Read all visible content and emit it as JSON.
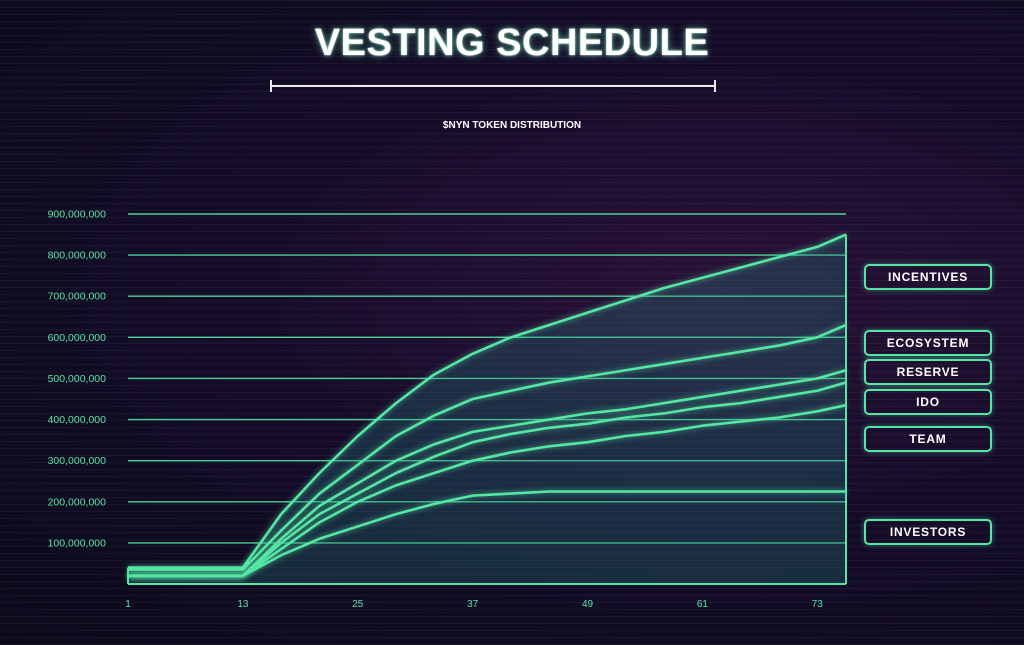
{
  "title": "VESTING SCHEDULE",
  "subtitle": "$NYN TOKEN DISTRIBUTION",
  "colors": {
    "line": "#55e6a5",
    "grid": "#55e6a5",
    "text": "#ffffff"
  },
  "chart_data": {
    "type": "area",
    "title": "VESTING SCHEDULE",
    "subtitle": "$NYN TOKEN DISTRIBUTION",
    "xlabel": "",
    "ylabel": "",
    "xlim": [
      1,
      76
    ],
    "ylim": [
      0,
      900000000
    ],
    "x_ticks": [
      "1",
      "13",
      "25",
      "37",
      "49",
      "61",
      "73"
    ],
    "y_ticks": [
      "100,000,000",
      "200,000,000",
      "300,000,000",
      "400,000,000",
      "500,000,000",
      "600,000,000",
      "700,000,000",
      "800,000,000",
      "900,000,000"
    ],
    "grid": true,
    "stacked": true,
    "legend_position": "right",
    "series": [
      {
        "name": "INVESTORS",
        "points": [
          [
            1,
            20000000
          ],
          [
            13,
            20000000
          ],
          [
            17,
            70000000
          ],
          [
            21,
            110000000
          ],
          [
            25,
            140000000
          ],
          [
            29,
            170000000
          ],
          [
            33,
            195000000
          ],
          [
            37,
            215000000
          ],
          [
            41,
            220000000
          ],
          [
            45,
            225000000
          ],
          [
            76,
            225000000
          ]
        ]
      },
      {
        "name": "TEAM",
        "points": [
          [
            1,
            20000000
          ],
          [
            13,
            20000000
          ],
          [
            17,
            85000000
          ],
          [
            21,
            150000000
          ],
          [
            25,
            200000000
          ],
          [
            29,
            240000000
          ],
          [
            33,
            270000000
          ],
          [
            37,
            300000000
          ],
          [
            41,
            320000000
          ],
          [
            45,
            335000000
          ],
          [
            49,
            345000000
          ],
          [
            53,
            360000000
          ],
          [
            57,
            370000000
          ],
          [
            61,
            385000000
          ],
          [
            65,
            395000000
          ],
          [
            69,
            405000000
          ],
          [
            73,
            420000000
          ],
          [
            76,
            435000000
          ]
        ]
      },
      {
        "name": "IDO",
        "points": [
          [
            1,
            20000000
          ],
          [
            13,
            20000000
          ],
          [
            17,
            100000000
          ],
          [
            21,
            170000000
          ],
          [
            25,
            220000000
          ],
          [
            29,
            270000000
          ],
          [
            33,
            310000000
          ],
          [
            37,
            345000000
          ],
          [
            41,
            365000000
          ],
          [
            45,
            380000000
          ],
          [
            49,
            390000000
          ],
          [
            53,
            405000000
          ],
          [
            57,
            415000000
          ],
          [
            61,
            430000000
          ],
          [
            65,
            440000000
          ],
          [
            69,
            455000000
          ],
          [
            73,
            470000000
          ],
          [
            76,
            490000000
          ]
        ]
      },
      {
        "name": "RESERVE",
        "points": [
          [
            1,
            20000000
          ],
          [
            13,
            20000000
          ],
          [
            17,
            110000000
          ],
          [
            21,
            190000000
          ],
          [
            25,
            245000000
          ],
          [
            29,
            300000000
          ],
          [
            33,
            340000000
          ],
          [
            37,
            370000000
          ],
          [
            41,
            385000000
          ],
          [
            45,
            400000000
          ],
          [
            49,
            415000000
          ],
          [
            53,
            425000000
          ],
          [
            57,
            440000000
          ],
          [
            61,
            455000000
          ],
          [
            65,
            470000000
          ],
          [
            69,
            485000000
          ],
          [
            73,
            500000000
          ],
          [
            76,
            520000000
          ]
        ]
      },
      {
        "name": "ECOSYSTEM",
        "points": [
          [
            1,
            35000000
          ],
          [
            13,
            35000000
          ],
          [
            17,
            130000000
          ],
          [
            21,
            220000000
          ],
          [
            25,
            290000000
          ],
          [
            29,
            360000000
          ],
          [
            33,
            410000000
          ],
          [
            37,
            450000000
          ],
          [
            41,
            470000000
          ],
          [
            45,
            490000000
          ],
          [
            49,
            505000000
          ],
          [
            53,
            520000000
          ],
          [
            57,
            535000000
          ],
          [
            61,
            550000000
          ],
          [
            65,
            565000000
          ],
          [
            69,
            580000000
          ],
          [
            73,
            600000000
          ],
          [
            76,
            630000000
          ]
        ]
      },
      {
        "name": "INCENTIVES",
        "points": [
          [
            1,
            40000000
          ],
          [
            13,
            40000000
          ],
          [
            17,
            170000000
          ],
          [
            21,
            270000000
          ],
          [
            25,
            360000000
          ],
          [
            29,
            440000000
          ],
          [
            33,
            510000000
          ],
          [
            37,
            560000000
          ],
          [
            41,
            600000000
          ],
          [
            45,
            630000000
          ],
          [
            49,
            660000000
          ],
          [
            53,
            690000000
          ],
          [
            57,
            720000000
          ],
          [
            61,
            745000000
          ],
          [
            65,
            770000000
          ],
          [
            69,
            795000000
          ],
          [
            73,
            820000000
          ],
          [
            76,
            850000000
          ]
        ]
      }
    ]
  }
}
